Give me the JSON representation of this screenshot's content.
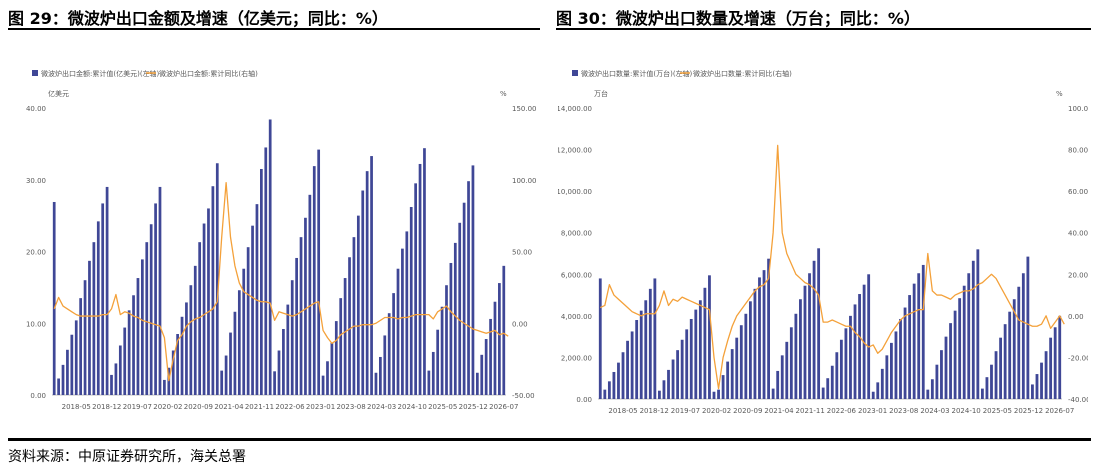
{
  "titles": {
    "left": "图 29：微波炉出口金额及增速（亿美元；同比：%）",
    "right": "图 30：微波炉出口数量及增速（万台；同比：%）"
  },
  "source": "资料来源：中原证券研究所，海关总署",
  "colors": {
    "bar": "#3f4796",
    "line": "#f4a13a",
    "axis_text": "#595959",
    "baseline": "#bfbfbf"
  },
  "chart_data": [
    {
      "type": "bar",
      "legend_position": "top-left",
      "grid": false,
      "bar_series_label": "微波炉出口金额:累计值(亿美元)(左轴)",
      "line_series_label": "微波炉出口金额:累计同比(右轴)",
      "left_unit": "亿美元",
      "right_unit": "%",
      "left_ylim": [
        0,
        40
      ],
      "left_ticks": [
        "0.00",
        "10.00",
        "20.00",
        "30.00",
        "40.00"
      ],
      "right_ylim": [
        -50,
        150
      ],
      "right_ticks": [
        "-50.00",
        "0.00",
        "50.00",
        "100.00",
        "150.00"
      ],
      "x_tick_labels": [
        "2018-05",
        "2018-12",
        "2019-07",
        "2020-02",
        "2020-09",
        "2021-04",
        "2021-11",
        "2022-06",
        "2023-01",
        "2023-08",
        "2024-03",
        "2024-10",
        "2025-05",
        "2025-12",
        "2026-07"
      ],
      "bar_values": [
        26.9,
        2.3,
        4.2,
        6.3,
        8.4,
        10.4,
        13.5,
        16,
        18.7,
        21.3,
        24.2,
        26.7,
        29,
        2.8,
        4.4,
        6.9,
        9.4,
        11.8,
        13.9,
        16.3,
        18.9,
        21.3,
        23.8,
        26.7,
        29,
        2.1,
        3.8,
        6.2,
        8.5,
        10.9,
        12.9,
        15.3,
        18,
        21.3,
        23.9,
        26,
        29.1,
        32.3,
        3.4,
        5.5,
        8.7,
        11.6,
        14.6,
        17.6,
        20.6,
        23.6,
        26.6,
        31.5,
        34.5,
        38.4,
        3.3,
        6.2,
        9.2,
        12.6,
        16,
        19.1,
        22,
        24.7,
        27.9,
        31.9,
        34.2,
        2.7,
        4.7,
        7.3,
        10.3,
        13.5,
        16.3,
        19.2,
        22,
        25,
        28.5,
        31.2,
        33.3,
        3.1,
        5.3,
        8.3,
        11.4,
        14.2,
        17.6,
        20.4,
        22.8,
        26.2,
        29.5,
        32.2,
        34.4,
        3.4,
        6,
        9.1,
        12.3,
        15.3,
        18.4,
        21.2,
        24,
        26.8,
        29.8,
        32,
        3.1,
        5.6,
        7.8,
        10.6,
        13,
        15.6,
        18
      ],
      "line_values": [
        10,
        18,
        12,
        10,
        8,
        6,
        5,
        5,
        5,
        5,
        5,
        6,
        6,
        10,
        20,
        6,
        8,
        7,
        5,
        4,
        2,
        1,
        0,
        -1,
        -2,
        -10,
        -40,
        -25,
        -12,
        -8,
        -2,
        1,
        3,
        4,
        6,
        8,
        10,
        15,
        60,
        98,
        60,
        40,
        28,
        22,
        20,
        18,
        16,
        15,
        15,
        14,
        2,
        8,
        7,
        6,
        5,
        6,
        8,
        10,
        12,
        14,
        15,
        -5,
        -10,
        -14,
        -12,
        -8,
        -6,
        -4,
        -2,
        -2,
        -1,
        -1,
        -1,
        0,
        2,
        4,
        4,
        4,
        3,
        4,
        4,
        5,
        6,
        6,
        6,
        6,
        3,
        8,
        10,
        12,
        8,
        5,
        2,
        0,
        -2,
        -4,
        -5,
        -6,
        -7,
        -6,
        -5,
        -8,
        -7,
        -9
      ]
    },
    {
      "type": "bar",
      "legend_position": "top-left",
      "grid": false,
      "bar_series_label": "微波炉出口数量:累计值(万台)(左轴)",
      "line_series_label": "微波炉出口数量:累计同比(右轴)",
      "left_unit": "万台",
      "right_unit": "%",
      "left_ylim": [
        0,
        14000
      ],
      "left_ticks": [
        "0.00",
        "2,000.00",
        "4,000.00",
        "6,000.00",
        "8,000.00",
        "10,000.00",
        "12,000.00",
        "14,000.00"
      ],
      "right_ylim": [
        -40,
        100
      ],
      "right_ticks": [
        "-40.00",
        "-20.00",
        "0.00",
        "20.00",
        "40.00",
        "60.00",
        "80.00",
        "100.00"
      ],
      "x_tick_labels": [
        "2018-05",
        "2018-12",
        "2019-07",
        "2020-02",
        "2020-09",
        "2021-04",
        "2021-11",
        "2022-06",
        "2023-01",
        "2023-08",
        "2024-03",
        "2024-10",
        "2025-05",
        "2025-12",
        "2026-07"
      ],
      "bar_values": [
        5800,
        450,
        850,
        1300,
        1750,
        2250,
        2800,
        3250,
        3800,
        4250,
        4750,
        5300,
        5800,
        400,
        900,
        1400,
        1900,
        2350,
        2850,
        3350,
        3850,
        4300,
        4750,
        5350,
        5950,
        350,
        450,
        1150,
        1800,
        2400,
        2950,
        3550,
        4100,
        4700,
        5300,
        5850,
        6200,
        6750,
        500,
        1350,
        2100,
        2750,
        3450,
        4100,
        4800,
        5450,
        6050,
        6650,
        7250,
        550,
        1000,
        1600,
        2250,
        2850,
        3400,
        4000,
        4550,
        5050,
        5500,
        6000,
        350,
        800,
        1450,
        2100,
        2700,
        3250,
        3850,
        4400,
        5000,
        5550,
        6050,
        6450,
        450,
        950,
        1650,
        2350,
        3000,
        3650,
        4250,
        4850,
        5450,
        6050,
        6650,
        7200,
        500,
        1050,
        1650,
        2300,
        2950,
        3600,
        4200,
        4800,
        5400,
        6050,
        6850,
        700,
        1200,
        1750,
        2300,
        2950,
        3450,
        4000
      ],
      "line_values": [
        4,
        5,
        15,
        10,
        8,
        6,
        4,
        2,
        1,
        0,
        1,
        1,
        1,
        5,
        12,
        5,
        8,
        7,
        9,
        8,
        7,
        6,
        5,
        4,
        3,
        -20,
        -35,
        -20,
        -12,
        -5,
        0,
        3,
        6,
        9,
        12,
        14,
        15,
        18,
        40,
        82,
        40,
        30,
        25,
        20,
        18,
        16,
        15,
        13,
        10,
        -3,
        -3,
        -2,
        -3,
        -4,
        -5,
        -5,
        -8,
        -10,
        -13,
        -15,
        -14,
        -18,
        -16,
        -12,
        -8,
        -5,
        -2,
        0,
        1,
        2,
        3,
        3,
        30,
        12,
        10,
        10,
        9,
        8,
        10,
        11,
        12,
        12,
        13,
        15,
        16,
        18,
        20,
        18,
        14,
        10,
        6,
        2,
        -2,
        -3,
        -4,
        -5,
        -5,
        -4,
        0,
        -6,
        -3,
        0,
        -4
      ]
    }
  ]
}
